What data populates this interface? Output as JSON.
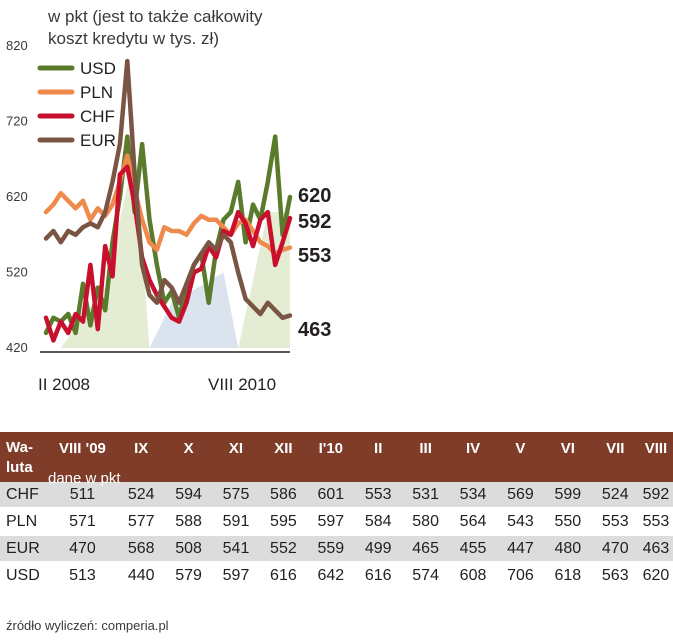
{
  "chart_data": {
    "type": "line",
    "subtitle_lines": [
      "w pkt (jest to także całkowity",
      "koszt kredytu w tys. zł)"
    ],
    "y_ticks": [
      "820",
      "720",
      "620",
      "520",
      "420"
    ],
    "ylim": [
      420,
      820
    ],
    "x_labels": [
      "II 2008",
      "VIII 2010"
    ],
    "series": [
      {
        "name": "USD",
        "color": "#5a7a2c",
        "end_label": "620",
        "values": [
          440,
          460,
          455,
          465,
          440,
          505,
          450,
          500,
          470,
          560,
          620,
          700,
          600,
          690,
          590,
          530,
          480,
          495,
          460,
          500,
          530,
          545,
          480,
          550,
          590,
          600,
          640,
          560,
          610,
          590,
          640,
          700,
          570,
          620
        ]
      },
      {
        "name": "PLN",
        "color": "#ef8a4c",
        "end_label": "553",
        "values": [
          600,
          610,
          625,
          615,
          605,
          615,
          590,
          605,
          595,
          610,
          640,
          675,
          630,
          590,
          560,
          550,
          580,
          575,
          575,
          570,
          585,
          595,
          590,
          590,
          580,
          570,
          585,
          590,
          575,
          560,
          555,
          545,
          550,
          553
        ]
      },
      {
        "name": "CHF",
        "color": "#c8102e",
        "end_label": "592",
        "values": [
          460,
          430,
          455,
          440,
          465,
          455,
          530,
          445,
          555,
          515,
          650,
          660,
          610,
          540,
          510,
          490,
          475,
          460,
          455,
          480,
          520,
          525,
          555,
          540,
          575,
          570,
          600,
          585,
          555,
          590,
          600,
          530,
          560,
          592
        ]
      },
      {
        "name": "EUR",
        "color": "#7b5544",
        "end_label": "463",
        "values": [
          565,
          575,
          560,
          575,
          570,
          580,
          585,
          580,
          600,
          640,
          690,
          800,
          650,
          530,
          490,
          480,
          510,
          500,
          480,
          505,
          530,
          545,
          560,
          550,
          570,
          560,
          520,
          485,
          475,
          465,
          480,
          470,
          460,
          463
        ]
      }
    ]
  },
  "table": {
    "header_first": "Wa-luta",
    "header_sub": "dane w pkt",
    "columns": [
      "VIII '09",
      "IX",
      "X",
      "XI",
      "XII",
      "I'10",
      "II",
      "III",
      "IV",
      "V",
      "VI",
      "VII",
      "VIII"
    ],
    "rows": [
      {
        "label": "CHF",
        "values": [
          "511",
          "524",
          "594",
          "575",
          "586",
          "601",
          "553",
          "531",
          "534",
          "569",
          "599",
          "524",
          "592"
        ]
      },
      {
        "label": "PLN",
        "values": [
          "571",
          "577",
          "588",
          "591",
          "595",
          "597",
          "584",
          "580",
          "564",
          "543",
          "550",
          "553",
          "553"
        ]
      },
      {
        "label": "EUR",
        "values": [
          "470",
          "568",
          "508",
          "541",
          "552",
          "559",
          "499",
          "465",
          "455",
          "447",
          "480",
          "470",
          "463"
        ]
      },
      {
        "label": "USD",
        "values": [
          "513",
          "440",
          "579",
          "597",
          "616",
          "642",
          "616",
          "574",
          "608",
          "706",
          "618",
          "563",
          "620"
        ]
      }
    ]
  },
  "source_note": "źródło wyliczeń: comperia.pl",
  "colors": {
    "header_bg": "#7e3c29",
    "row_alt": "#dcdcdc",
    "band_green": "#e4ecd4",
    "band_blue": "#dbe3ee"
  }
}
